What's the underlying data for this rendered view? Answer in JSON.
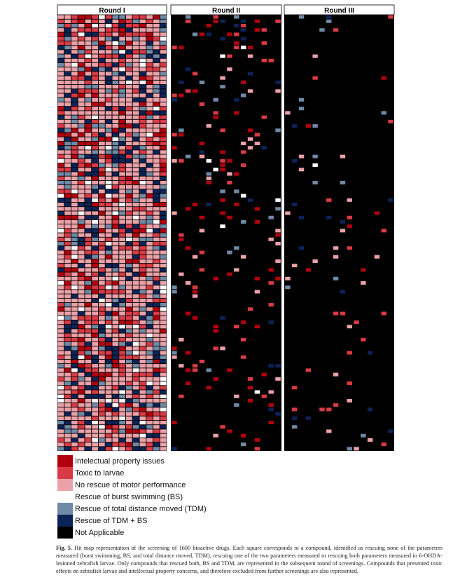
{
  "figure": {
    "panel_titles": [
      "Round I",
      "Round II",
      "Round III"
    ],
    "categories": [
      {
        "key": "ip",
        "label": "Intelectual property issues",
        "color": "#b3000d"
      },
      {
        "key": "toxic",
        "label": "Toxic to larvae",
        "color": "#d93a45"
      },
      {
        "key": "none",
        "label": "No rescue of motor performance",
        "color": "#eba1a8"
      },
      {
        "key": "bs",
        "label": "Rescue of burst swimming (BS)",
        "color": "#ffffff"
      },
      {
        "key": "tdm",
        "label": "Rescue of total distance moved (TDM)",
        "color": "#6f8aa6"
      },
      {
        "key": "both",
        "label": "Rescue of TDM + BS",
        "color": "#0b2357"
      },
      {
        "key": "na",
        "label": "Not Applicable",
        "color": "#000000"
      }
    ],
    "caption": {
      "label": "Fig. 5.",
      "text": "Hit map representation of the screening of 1600 bioactive drugs. Each square corresponds to a compound, identified as rescuing none of the parameters measured (burst swimming, BS, and total distance moved, TDM), rescuing one of the two parameters measured or rescuing both parameters measured in 6-OHDA-lesioned zebrafish larvae. Only compounds that rescued both, BS and TDM, are represented in the subsequent round of screenings. Compounds that presented toxic effects on zebrafish larvae and intellectual property concerns, and therefore excluded from further screenings are also represented."
    }
  }
}
